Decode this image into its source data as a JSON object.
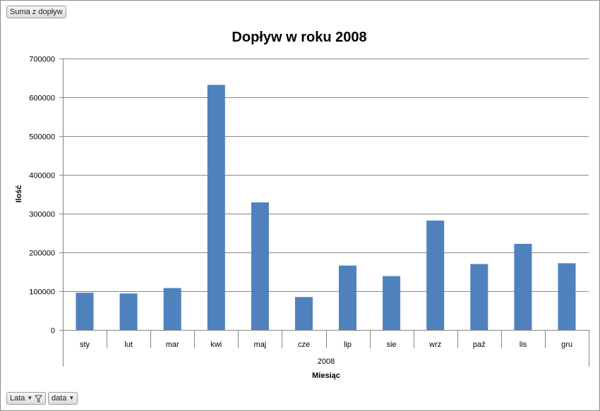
{
  "value_field": {
    "label": "Suma z dopływ"
  },
  "filter_fields": [
    {
      "label": "Lata"
    },
    {
      "label": "data"
    }
  ],
  "chart_data": {
    "type": "bar",
    "title": "Dopływ w roku 2008",
    "xlabel": "Miesiąc",
    "ylabel": "Ilość",
    "group_label": "2008",
    "categories": [
      "sty",
      "lut",
      "mar",
      "kwi",
      "maj",
      "cze",
      "lip",
      "sie",
      "wrz",
      "paź",
      "lis",
      "gru"
    ],
    "values": [
      96000,
      94000,
      108000,
      632000,
      329000,
      85000,
      166000,
      139000,
      282000,
      170000,
      222000,
      172000
    ],
    "ylim": [
      0,
      700000
    ],
    "yticks": [
      0,
      100000,
      200000,
      300000,
      400000,
      500000,
      600000,
      700000
    ],
    "grid": true,
    "colors": {
      "bar": "#4f81bd",
      "grid": "#868686"
    }
  }
}
